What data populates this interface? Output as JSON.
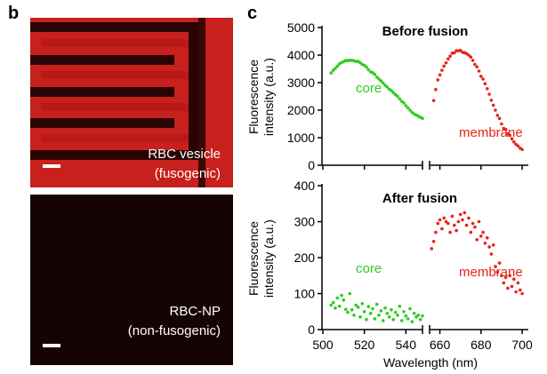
{
  "panel_b": {
    "letter": "b",
    "top_image": {
      "label_line1": "RBC vesicle",
      "label_line2": "(fusogenic)",
      "color": "#c8201c"
    },
    "bottom_image": {
      "label_line1": "RBC-NP",
      "label_line2": "(non-fusogenic)",
      "color": "#160303"
    }
  },
  "panel_c": {
    "letter": "c"
  },
  "colors": {
    "core": "#2ecc1f",
    "membrane": "#e8231b"
  },
  "chart_data": [
    {
      "type": "scatter",
      "title": "Before fusion",
      "ylabel": "Fluorescence intensity (a.u.)",
      "ylim": [
        0,
        5000
      ],
      "yticks": [
        0,
        1000,
        2000,
        3000,
        4000,
        5000
      ],
      "xlim_segments": [
        [
          500,
          548
        ],
        [
          655,
          703
        ]
      ],
      "xticks": [
        500,
        520,
        540,
        660,
        680,
        700
      ],
      "series": [
        {
          "name": "core",
          "color": "#2ecc1f",
          "x": [
            504,
            505,
            506,
            507,
            508,
            509,
            510,
            511,
            512,
            513,
            514,
            515,
            516,
            517,
            518,
            519,
            520,
            521,
            522,
            523,
            524,
            525,
            526,
            527,
            528,
            529,
            530,
            531,
            532,
            533,
            534,
            535,
            536,
            537,
            538,
            539,
            540,
            541,
            542,
            543,
            544,
            545,
            546,
            547,
            548
          ],
          "y": [
            3350,
            3450,
            3520,
            3600,
            3680,
            3730,
            3760,
            3800,
            3800,
            3810,
            3810,
            3790,
            3770,
            3770,
            3720,
            3660,
            3630,
            3560,
            3470,
            3390,
            3360,
            3300,
            3200,
            3130,
            3060,
            2990,
            2900,
            2840,
            2760,
            2710,
            2640,
            2560,
            2500,
            2410,
            2320,
            2260,
            2160,
            2080,
            2000,
            1920,
            1860,
            1820,
            1780,
            1740,
            1700
          ]
        },
        {
          "name": "membrane",
          "color": "#e8231b",
          "x": [
            657,
            658,
            659,
            660,
            661,
            662,
            663,
            664,
            665,
            666,
            667,
            668,
            669,
            670,
            671,
            672,
            673,
            674,
            675,
            676,
            677,
            678,
            679,
            680,
            681,
            682,
            683,
            684,
            685,
            686,
            687,
            688,
            689,
            690,
            691,
            692,
            693,
            694,
            695,
            696,
            697,
            698,
            699,
            700
          ],
          "y": [
            2350,
            2750,
            3100,
            3280,
            3450,
            3600,
            3720,
            3860,
            3960,
            4070,
            4080,
            4160,
            4150,
            4170,
            4100,
            4090,
            4050,
            4000,
            3930,
            3810,
            3660,
            3570,
            3420,
            3230,
            3130,
            2960,
            2780,
            2580,
            2360,
            2180,
            2000,
            1810,
            1700,
            1500,
            1340,
            1300,
            1140,
            1080,
            960,
            850,
            760,
            700,
            620,
            570
          ]
        }
      ]
    },
    {
      "type": "scatter",
      "title": "After fusion",
      "ylabel": "Fluorescence intensity (a.u.)",
      "xlabel": "Wavelength (nm)",
      "ylim": [
        0,
        400
      ],
      "yticks": [
        0,
        100,
        200,
        300,
        400
      ],
      "xlim_segments": [
        [
          500,
          548
        ],
        [
          655,
          703
        ]
      ],
      "xticks": [
        500,
        520,
        540,
        660,
        680,
        700
      ],
      "series": [
        {
          "name": "core",
          "color": "#2ecc1f",
          "x": [
            504,
            505,
            506,
            507,
            508,
            509,
            510,
            511,
            512,
            513,
            514,
            515,
            516,
            517,
            518,
            519,
            520,
            521,
            522,
            523,
            524,
            525,
            526,
            527,
            528,
            529,
            530,
            531,
            532,
            533,
            534,
            535,
            536,
            537,
            538,
            539,
            540,
            541,
            542,
            543,
            544,
            545,
            546,
            547,
            548
          ],
          "y": [
            68,
            75,
            60,
            88,
            65,
            95,
            82,
            56,
            48,
            100,
            55,
            40,
            68,
            62,
            35,
            72,
            50,
            28,
            64,
            45,
            58,
            30,
            70,
            40,
            52,
            25,
            60,
            45,
            35,
            55,
            28,
            48,
            40,
            65,
            25,
            50,
            38,
            30,
            58,
            22,
            45,
            35,
            40,
            28,
            38
          ]
        },
        {
          "name": "membrane",
          "color": "#e8231b",
          "x": [
            656,
            657,
            658,
            659,
            660,
            661,
            662,
            663,
            664,
            665,
            666,
            667,
            668,
            669,
            670,
            671,
            672,
            673,
            674,
            675,
            676,
            677,
            678,
            679,
            680,
            681,
            682,
            683,
            684,
            685,
            686,
            687,
            688,
            689,
            690,
            691,
            692,
            693,
            694,
            695,
            696,
            697,
            698,
            699,
            700
          ],
          "y": [
            225,
            245,
            270,
            295,
            305,
            280,
            310,
            300,
            295,
            270,
            315,
            290,
            275,
            300,
            320,
            305,
            325,
            290,
            310,
            270,
            295,
            285,
            250,
            300,
            260,
            270,
            240,
            255,
            230,
            210,
            235,
            175,
            160,
            185,
            150,
            130,
            145,
            115,
            150,
            120,
            140,
            105,
            130,
            110,
            100
          ]
        }
      ]
    }
  ],
  "annotations": {
    "core": "core",
    "membrane": "membrane"
  }
}
